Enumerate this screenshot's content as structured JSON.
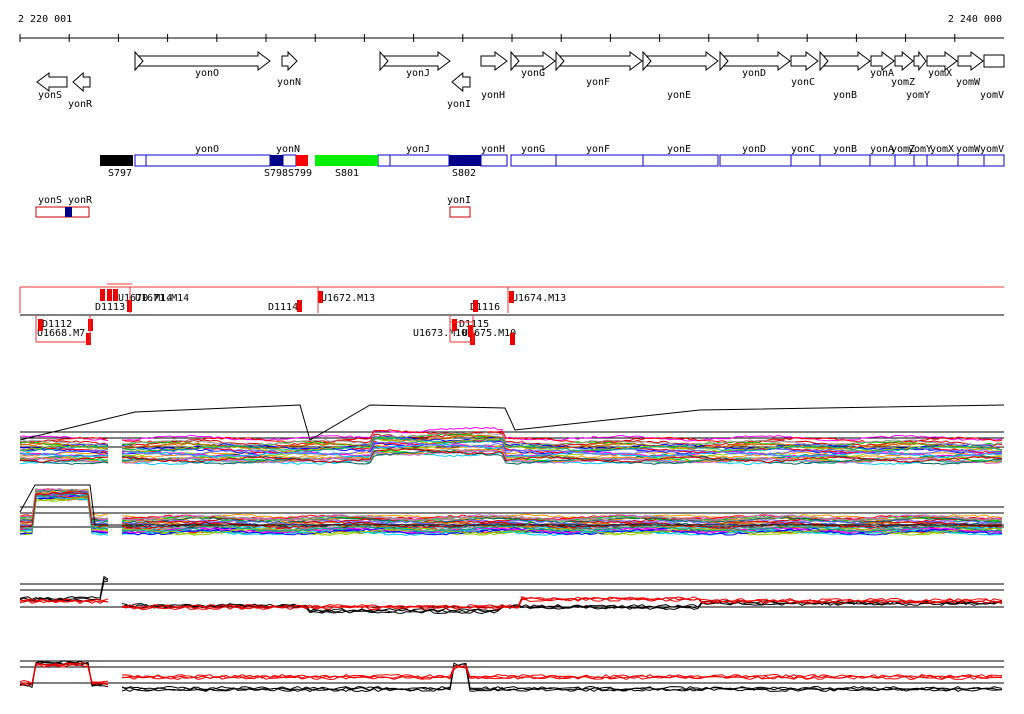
{
  "axis": {
    "start": "2 220 001",
    "end": "2 240 000"
  },
  "genes": [
    "yonS",
    "yonR",
    "yonO",
    "yonN",
    "yonJ",
    "yonI",
    "yonH",
    "yonG",
    "yonF",
    "yonE",
    "yonD",
    "yonC",
    "yonB",
    "yonA",
    "yomZ",
    "yomY",
    "yomX",
    "yomW",
    "yomV"
  ],
  "segments": {
    "names": [
      "S797",
      "S798",
      "S799",
      "S801",
      "S802"
    ],
    "gene_labels": [
      "yonO",
      "yonN",
      "yonJ",
      "yonH",
      "yonG",
      "yonF",
      "yonE",
      "yonD",
      "yonC",
      "yonB",
      "yonA",
      "yomZ",
      "yomY",
      "yomX",
      "yomW",
      "yomV"
    ],
    "lower_labels": [
      "yonS",
      "yonR",
      "yonI"
    ]
  },
  "tracks": [
    "D1113",
    "U1670.M14",
    "U1671.M14",
    "D1114",
    "U1672.M13",
    "D1116",
    "U1674.M13",
    "D1112",
    "U1668.M7",
    "D1115",
    "U1673.M10",
    "U1675.M10"
  ]
}
